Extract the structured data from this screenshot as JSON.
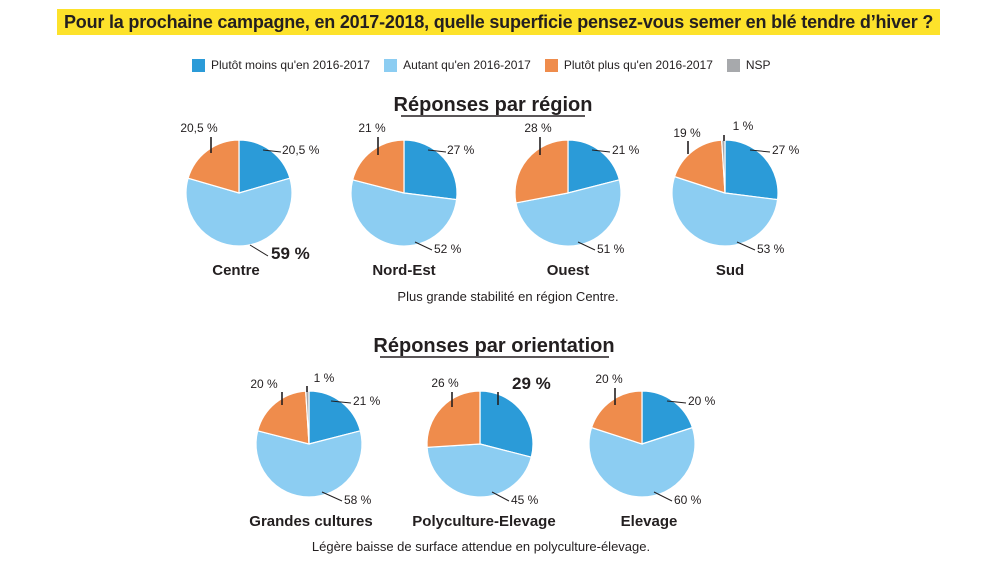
{
  "question": "Pour la prochaine campagne, en 2017-2018, quelle superficie pensez-vous semer en blé tendre d’hiver ?",
  "colors": {
    "moins": "#2b9bd8",
    "autant": "#8ccdf2",
    "plus": "#ef8c4c",
    "nsp": "#a7a9ac",
    "highlight": "#fde22b"
  },
  "legend": [
    {
      "label": "Plutôt moins qu'en 2016-2017",
      "color": "#2b9bd8"
    },
    {
      "label": "Autant qu'en 2016-2017",
      "color": "#8ccdf2"
    },
    {
      "label": "Plutôt plus qu'en 2016-2017",
      "color": "#ef8c4c"
    },
    {
      "label": "NSP",
      "color": "#a7a9ac"
    }
  ],
  "sections": {
    "region": {
      "title": "Réponses par région",
      "note": "Plus grande stabilité en région Centre."
    },
    "orientation": {
      "title": "Réponses par orientation",
      "note": "Légère baisse de surface attendue en polyculture-élevage."
    }
  },
  "chart_data": [
    {
      "type": "pie",
      "title": "Réponses par région",
      "series_names": [
        "Plutôt moins qu'en 2016-2017",
        "Autant qu'en 2016-2017",
        "Plutôt plus qu'en 2016-2017",
        "NSP"
      ],
      "pies": [
        {
          "name": "Centre",
          "values": [
            20.5,
            59,
            20.5,
            0
          ],
          "labels": [
            "20,5 %",
            "59 %",
            "20,5 %",
            ""
          ]
        },
        {
          "name": "Nord-Est",
          "values": [
            27,
            52,
            21,
            0
          ],
          "labels": [
            "27 %",
            "52 %",
            "21 %",
            ""
          ]
        },
        {
          "name": "Ouest",
          "values": [
            21,
            51,
            28,
            0
          ],
          "labels": [
            "21 %",
            "51 %",
            "28 %",
            ""
          ]
        },
        {
          "name": "Sud",
          "values": [
            27,
            53,
            19,
            1
          ],
          "labels": [
            "27 %",
            "53 %",
            "19 %",
            "1 %"
          ]
        }
      ]
    },
    {
      "type": "pie",
      "title": "Réponses par orientation",
      "series_names": [
        "Plutôt moins qu'en 2016-2017",
        "Autant qu'en 2016-2017",
        "Plutôt plus qu'en 2016-2017",
        "NSP"
      ],
      "pies": [
        {
          "name": "Grandes cultures",
          "values": [
            21,
            58,
            20,
            1
          ],
          "labels": [
            "21 %",
            "58 %",
            "20 %",
            "1 %"
          ]
        },
        {
          "name": "Polyculture-Elevage",
          "values": [
            29,
            45,
            26,
            0
          ],
          "labels": [
            "29 %",
            "45 %",
            "26 %",
            ""
          ]
        },
        {
          "name": "Elevage",
          "values": [
            20,
            60,
            20,
            0
          ],
          "labels": [
            "20 %",
            "60 %",
            "20 %",
            ""
          ]
        }
      ]
    }
  ]
}
